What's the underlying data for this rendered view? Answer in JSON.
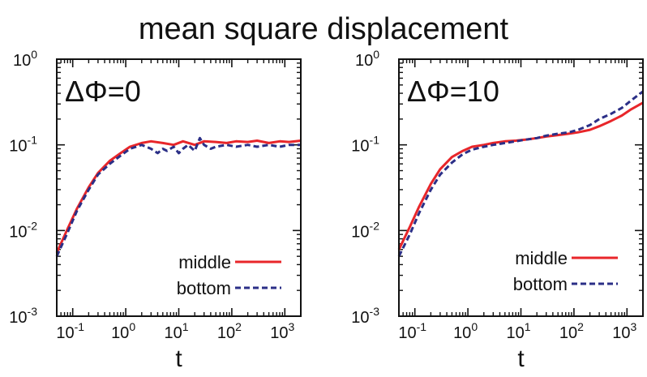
{
  "title": "mean square displacement",
  "chart_data": [
    {
      "type": "line",
      "annotation": "ΔΦ=0",
      "xlabel": "t",
      "ylabel": "",
      "xscale": "log",
      "yscale": "log",
      "xlim": [
        0.05,
        2000
      ],
      "ylim": [
        0.001,
        1
      ],
      "xticks": [
        {
          "base": "10",
          "exp": "-1"
        },
        {
          "base": "10",
          "exp": "0"
        },
        {
          "base": "10",
          "exp": "1"
        },
        {
          "base": "10",
          "exp": "2"
        },
        {
          "base": "10",
          "exp": "3"
        }
      ],
      "yticks": [
        {
          "base": "10",
          "exp": "-3"
        },
        {
          "base": "10",
          "exp": "-2"
        },
        {
          "base": "10",
          "exp": "-1"
        },
        {
          "base": "10",
          "exp": "0"
        }
      ],
      "legend_position": "bottom-right",
      "series": [
        {
          "name": "middle",
          "color": "#e8262a",
          "style": "solid",
          "x": [
            0.05,
            0.08,
            0.12,
            0.2,
            0.3,
            0.5,
            0.8,
            1.2,
            2,
            3,
            5,
            8,
            12,
            20,
            30,
            50,
            80,
            120,
            200,
            300,
            500,
            800,
            1200,
            2000
          ],
          "y": [
            0.0055,
            0.0105,
            0.018,
            0.032,
            0.047,
            0.065,
            0.08,
            0.095,
            0.105,
            0.11,
            0.105,
            0.1,
            0.11,
            0.1,
            0.11,
            0.108,
            0.105,
            0.11,
            0.108,
            0.112,
            0.105,
            0.11,
            0.108,
            0.112
          ]
        },
        {
          "name": "bottom",
          "color": "#2b2f87",
          "style": "dashed",
          "x": [
            0.05,
            0.08,
            0.12,
            0.2,
            0.3,
            0.5,
            0.8,
            1.2,
            2,
            3,
            4,
            5,
            6,
            8,
            10,
            12,
            15,
            20,
            25,
            30,
            40,
            50,
            80,
            120,
            200,
            300,
            500,
            800,
            1200,
            2000
          ],
          "y": [
            0.005,
            0.0095,
            0.017,
            0.03,
            0.045,
            0.06,
            0.075,
            0.09,
            0.1,
            0.09,
            0.08,
            0.09,
            0.085,
            0.095,
            0.08,
            0.09,
            0.1,
            0.085,
            0.12,
            0.1,
            0.09,
            0.095,
            0.1,
            0.095,
            0.1,
            0.095,
            0.1,
            0.095,
            0.1,
            0.1
          ]
        }
      ]
    },
    {
      "type": "line",
      "annotation": "ΔΦ=10",
      "xlabel": "t",
      "ylabel": "",
      "xscale": "log",
      "yscale": "log",
      "xlim": [
        0.05,
        2000
      ],
      "ylim": [
        0.001,
        1
      ],
      "xticks": [
        {
          "base": "10",
          "exp": "-1"
        },
        {
          "base": "10",
          "exp": "0"
        },
        {
          "base": "10",
          "exp": "1"
        },
        {
          "base": "10",
          "exp": "2"
        },
        {
          "base": "10",
          "exp": "3"
        }
      ],
      "yticks": [
        {
          "base": "10",
          "exp": "-3"
        },
        {
          "base": "10",
          "exp": "-2"
        },
        {
          "base": "10",
          "exp": "-1"
        },
        {
          "base": "10",
          "exp": "0"
        }
      ],
      "legend_position": "bottom-right",
      "series": [
        {
          "name": "middle",
          "color": "#e8262a",
          "style": "solid",
          "x": [
            0.05,
            0.08,
            0.12,
            0.2,
            0.3,
            0.5,
            0.8,
            1.2,
            2,
            3,
            5,
            8,
            12,
            20,
            30,
            50,
            80,
            120,
            200,
            300,
            500,
            800,
            1200,
            2000
          ],
          "y": [
            0.006,
            0.011,
            0.019,
            0.035,
            0.052,
            0.072,
            0.085,
            0.095,
            0.1,
            0.105,
            0.11,
            0.112,
            0.115,
            0.12,
            0.125,
            0.13,
            0.135,
            0.14,
            0.15,
            0.165,
            0.19,
            0.22,
            0.26,
            0.31
          ]
        },
        {
          "name": "bottom",
          "color": "#2b2f87",
          "style": "dashed",
          "x": [
            0.05,
            0.08,
            0.12,
            0.2,
            0.3,
            0.5,
            0.8,
            1.2,
            2,
            3,
            5,
            8,
            12,
            20,
            30,
            50,
            80,
            120,
            200,
            300,
            500,
            800,
            1200,
            2000
          ],
          "y": [
            0.005,
            0.009,
            0.016,
            0.03,
            0.045,
            0.062,
            0.078,
            0.088,
            0.095,
            0.1,
            0.105,
            0.11,
            0.115,
            0.12,
            0.128,
            0.135,
            0.14,
            0.15,
            0.17,
            0.2,
            0.23,
            0.27,
            0.33,
            0.42
          ]
        }
      ]
    }
  ]
}
